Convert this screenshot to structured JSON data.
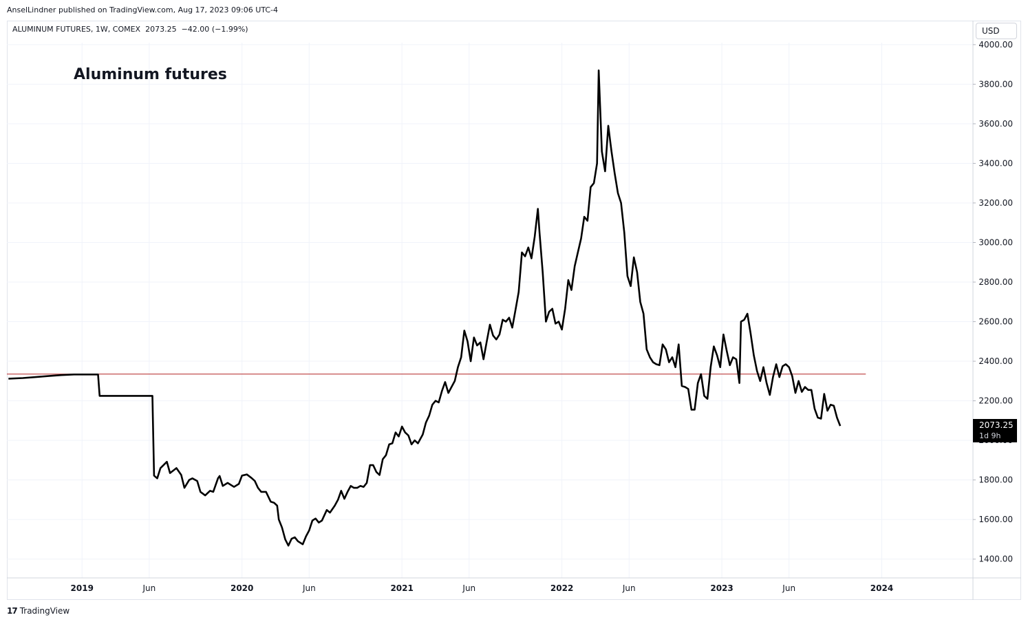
{
  "header": {
    "published_by": "AnselLindner published on TradingView.com, Aug 17, 2023 09:06 UTC-4"
  },
  "symbol": {
    "name": "ALUMINUM FUTURES",
    "interval": "1W",
    "exchange": "COMEX",
    "price": "2073.25",
    "change": "−42.00",
    "change_pct": "(−1.99%)"
  },
  "currency_button": {
    "label": "USD"
  },
  "annotation": {
    "text": "Aluminum futures"
  },
  "last_price_label": {
    "value": "2073.25",
    "countdown": "1d 9h"
  },
  "footer": {
    "brand": "TradingView",
    "logo_glyph": "17"
  },
  "colors": {
    "line": "#000000",
    "hline": "#b22222",
    "grid": "#f0f3fa"
  },
  "chart_data": {
    "type": "line",
    "title": "",
    "xlabel": "",
    "ylabel": "",
    "x_ticks": [
      {
        "label": "2019",
        "t": 2019.0,
        "bold": true
      },
      {
        "label": "Jun",
        "t": 2019.42,
        "bold": false
      },
      {
        "label": "2020",
        "t": 2020.0,
        "bold": true
      },
      {
        "label": "Jun",
        "t": 2020.42,
        "bold": false
      },
      {
        "label": "2021",
        "t": 2021.0,
        "bold": true
      },
      {
        "label": "Jun",
        "t": 2021.42,
        "bold": false
      },
      {
        "label": "2022",
        "t": 2022.0,
        "bold": true
      },
      {
        "label": "Jun",
        "t": 2022.42,
        "bold": false
      },
      {
        "label": "2023",
        "t": 2023.0,
        "bold": true
      },
      {
        "label": "Jun",
        "t": 2023.42,
        "bold": false
      },
      {
        "label": "2024",
        "t": 2024.0,
        "bold": true
      }
    ],
    "y_ticks": [
      "1400.00",
      "1600.00",
      "1800.00",
      "2000.00",
      "2200.00",
      "2400.00",
      "2600.00",
      "2800.00",
      "3000.00",
      "3200.00",
      "3400.00",
      "3600.00",
      "3800.00",
      "4000.00"
    ],
    "xlim": [
      2018.53,
      2024.57
    ],
    "ylim": [
      1305,
      4010
    ],
    "horizontal_line": 2335,
    "series": [
      {
        "points": [
          [
            2018.54,
            2312
          ],
          [
            2018.63,
            2315
          ],
          [
            2018.71,
            2320
          ],
          [
            2018.79,
            2325
          ],
          [
            2018.87,
            2330
          ],
          [
            2018.95,
            2333
          ],
          [
            2019.05,
            2333
          ],
          [
            2019.1,
            2333
          ],
          [
            2019.11,
            2225
          ],
          [
            2019.2,
            2225
          ],
          [
            2019.3,
            2225
          ],
          [
            2019.39,
            2225
          ],
          [
            2019.44,
            2225
          ],
          [
            2019.45,
            1822
          ],
          [
            2019.47,
            1808
          ],
          [
            2019.49,
            1860
          ],
          [
            2019.53,
            1892
          ],
          [
            2019.55,
            1835
          ],
          [
            2019.59,
            1860
          ],
          [
            2019.62,
            1825
          ],
          [
            2019.64,
            1760
          ],
          [
            2019.67,
            1800
          ],
          [
            2019.69,
            1808
          ],
          [
            2019.72,
            1795
          ],
          [
            2019.74,
            1740
          ],
          [
            2019.77,
            1722
          ],
          [
            2019.8,
            1745
          ],
          [
            2019.82,
            1740
          ],
          [
            2019.85,
            1808
          ],
          [
            2019.86,
            1820
          ],
          [
            2019.88,
            1770
          ],
          [
            2019.91,
            1785
          ],
          [
            2019.95,
            1765
          ],
          [
            2019.98,
            1780
          ],
          [
            2020.0,
            1822
          ],
          [
            2020.03,
            1828
          ],
          [
            2020.06,
            1810
          ],
          [
            2020.08,
            1795
          ],
          [
            2020.1,
            1760
          ],
          [
            2020.12,
            1740
          ],
          [
            2020.15,
            1740
          ],
          [
            2020.18,
            1690
          ],
          [
            2020.2,
            1685
          ],
          [
            2020.22,
            1670
          ],
          [
            2020.23,
            1600
          ],
          [
            2020.25,
            1560
          ],
          [
            2020.27,
            1500
          ],
          [
            2020.29,
            1468
          ],
          [
            2020.31,
            1503
          ],
          [
            2020.33,
            1510
          ],
          [
            2020.35,
            1490
          ],
          [
            2020.38,
            1475
          ],
          [
            2020.4,
            1515
          ],
          [
            2020.42,
            1545
          ],
          [
            2020.44,
            1595
          ],
          [
            2020.46,
            1605
          ],
          [
            2020.48,
            1585
          ],
          [
            2020.5,
            1595
          ],
          [
            2020.53,
            1648
          ],
          [
            2020.55,
            1635
          ],
          [
            2020.58,
            1670
          ],
          [
            2020.6,
            1700
          ],
          [
            2020.62,
            1745
          ],
          [
            2020.64,
            1705
          ],
          [
            2020.66,
            1740
          ],
          [
            2020.68,
            1770
          ],
          [
            2020.7,
            1760
          ],
          [
            2020.72,
            1760
          ],
          [
            2020.74,
            1770
          ],
          [
            2020.76,
            1765
          ],
          [
            2020.78,
            1785
          ],
          [
            2020.8,
            1875
          ],
          [
            2020.82,
            1875
          ],
          [
            2020.84,
            1840
          ],
          [
            2020.86,
            1825
          ],
          [
            2020.88,
            1905
          ],
          [
            2020.9,
            1925
          ],
          [
            2020.92,
            1980
          ],
          [
            2020.94,
            1985
          ],
          [
            2020.96,
            2040
          ],
          [
            2020.98,
            2020
          ],
          [
            2021.0,
            2070
          ],
          [
            2021.02,
            2040
          ],
          [
            2021.04,
            2025
          ],
          [
            2021.06,
            1980
          ],
          [
            2021.08,
            2000
          ],
          [
            2021.1,
            1985
          ],
          [
            2021.13,
            2030
          ],
          [
            2021.15,
            2090
          ],
          [
            2021.17,
            2125
          ],
          [
            2021.19,
            2180
          ],
          [
            2021.21,
            2200
          ],
          [
            2021.23,
            2192
          ],
          [
            2021.25,
            2250
          ],
          [
            2021.27,
            2295
          ],
          [
            2021.29,
            2240
          ],
          [
            2021.31,
            2270
          ],
          [
            2021.33,
            2300
          ],
          [
            2021.35,
            2370
          ],
          [
            2021.37,
            2420
          ],
          [
            2021.39,
            2555
          ],
          [
            2021.41,
            2500
          ],
          [
            2021.43,
            2400
          ],
          [
            2021.45,
            2520
          ],
          [
            2021.47,
            2480
          ],
          [
            2021.49,
            2495
          ],
          [
            2021.51,
            2410
          ],
          [
            2021.53,
            2500
          ],
          [
            2021.55,
            2585
          ],
          [
            2021.57,
            2530
          ],
          [
            2021.59,
            2510
          ],
          [
            2021.61,
            2535
          ],
          [
            2021.63,
            2610
          ],
          [
            2021.65,
            2600
          ],
          [
            2021.67,
            2620
          ],
          [
            2021.69,
            2570
          ],
          [
            2021.71,
            2660
          ],
          [
            2021.73,
            2750
          ],
          [
            2021.75,
            2950
          ],
          [
            2021.77,
            2930
          ],
          [
            2021.79,
            2975
          ],
          [
            2021.81,
            2920
          ],
          [
            2021.83,
            3030
          ],
          [
            2021.85,
            3170
          ],
          [
            2021.86,
            3050
          ],
          [
            2021.88,
            2850
          ],
          [
            2021.9,
            2600
          ],
          [
            2021.92,
            2650
          ],
          [
            2021.94,
            2665
          ],
          [
            2021.96,
            2590
          ],
          [
            2021.98,
            2600
          ],
          [
            2022.0,
            2560
          ],
          [
            2022.02,
            2665
          ],
          [
            2022.04,
            2810
          ],
          [
            2022.06,
            2760
          ],
          [
            2022.08,
            2880
          ],
          [
            2022.1,
            2950
          ],
          [
            2022.12,
            3020
          ],
          [
            2022.14,
            3130
          ],
          [
            2022.16,
            3110
          ],
          [
            2022.18,
            3280
          ],
          [
            2022.2,
            3300
          ],
          [
            2022.22,
            3400
          ],
          [
            2022.23,
            3870
          ],
          [
            2022.25,
            3460
          ],
          [
            2022.27,
            3360
          ],
          [
            2022.29,
            3590
          ],
          [
            2022.31,
            3460
          ],
          [
            2022.33,
            3350
          ],
          [
            2022.35,
            3250
          ],
          [
            2022.37,
            3200
          ],
          [
            2022.39,
            3050
          ],
          [
            2022.41,
            2830
          ],
          [
            2022.43,
            2780
          ],
          [
            2022.45,
            2925
          ],
          [
            2022.47,
            2850
          ],
          [
            2022.49,
            2700
          ],
          [
            2022.51,
            2640
          ],
          [
            2022.53,
            2460
          ],
          [
            2022.55,
            2420
          ],
          [
            2022.57,
            2395
          ],
          [
            2022.59,
            2385
          ],
          [
            2022.61,
            2380
          ],
          [
            2022.63,
            2485
          ],
          [
            2022.65,
            2460
          ],
          [
            2022.67,
            2395
          ],
          [
            2022.69,
            2420
          ],
          [
            2022.71,
            2370
          ],
          [
            2022.73,
            2485
          ],
          [
            2022.75,
            2275
          ],
          [
            2022.77,
            2270
          ],
          [
            2022.79,
            2260
          ],
          [
            2022.81,
            2155
          ],
          [
            2022.83,
            2155
          ],
          [
            2022.85,
            2290
          ],
          [
            2022.87,
            2335
          ],
          [
            2022.89,
            2225
          ],
          [
            2022.91,
            2210
          ],
          [
            2022.93,
            2370
          ],
          [
            2022.95,
            2475
          ],
          [
            2022.97,
            2430
          ],
          [
            2022.99,
            2370
          ],
          [
            2023.01,
            2535
          ],
          [
            2023.03,
            2455
          ],
          [
            2023.05,
            2380
          ],
          [
            2023.07,
            2420
          ],
          [
            2023.09,
            2410
          ],
          [
            2023.11,
            2290
          ],
          [
            2023.12,
            2600
          ],
          [
            2023.14,
            2610
          ],
          [
            2023.16,
            2640
          ],
          [
            2023.18,
            2540
          ],
          [
            2023.2,
            2430
          ],
          [
            2023.22,
            2350
          ],
          [
            2023.24,
            2300
          ],
          [
            2023.26,
            2370
          ],
          [
            2023.28,
            2290
          ],
          [
            2023.3,
            2230
          ],
          [
            2023.32,
            2320
          ],
          [
            2023.34,
            2385
          ],
          [
            2023.36,
            2320
          ],
          [
            2023.38,
            2375
          ],
          [
            2023.4,
            2385
          ],
          [
            2023.42,
            2370
          ],
          [
            2023.44,
            2325
          ],
          [
            2023.46,
            2240
          ],
          [
            2023.48,
            2300
          ],
          [
            2023.5,
            2245
          ],
          [
            2023.52,
            2270
          ],
          [
            2023.54,
            2255
          ],
          [
            2023.56,
            2255
          ],
          [
            2023.58,
            2160
          ],
          [
            2023.6,
            2115
          ],
          [
            2023.62,
            2110
          ],
          [
            2023.64,
            2235
          ],
          [
            2023.66,
            2150
          ],
          [
            2023.68,
            2180
          ],
          [
            2023.7,
            2175
          ],
          [
            2023.72,
            2115
          ],
          [
            2023.74,
            2073
          ]
        ]
      }
    ]
  }
}
